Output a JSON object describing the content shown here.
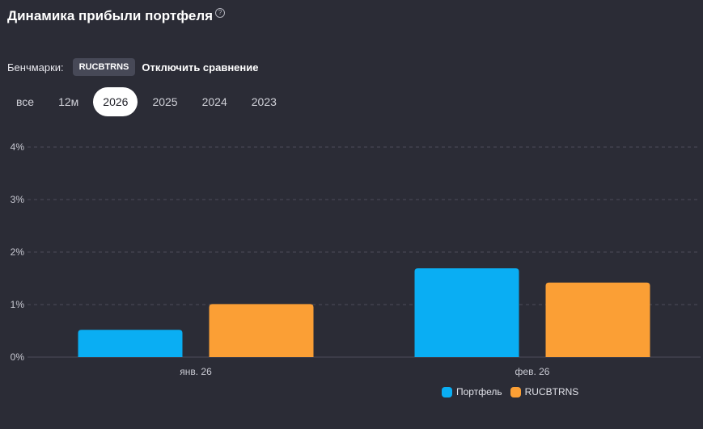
{
  "header": {
    "title": "Динамика прибыли портфеля",
    "help_glyph": "?"
  },
  "benchmarks": {
    "label": "Бенчмарки:",
    "selected": "RUCBTRNS",
    "disable_label": "Отключить сравнение"
  },
  "periods": [
    {
      "label": "все",
      "active": false
    },
    {
      "label": "12м",
      "active": false
    },
    {
      "label": "2026",
      "active": true
    },
    {
      "label": "2025",
      "active": false
    },
    {
      "label": "2024",
      "active": false
    },
    {
      "label": "2023",
      "active": false
    }
  ],
  "colors": {
    "background": "#2b2c36",
    "portfolio": "#0aaef3",
    "benchmark": "#fb9f35",
    "grid": "#4c4d59",
    "active_pill": "#ffffff"
  },
  "chart_data": {
    "type": "bar",
    "categories": [
      "янв. 26",
      "фев. 26"
    ],
    "series": [
      {
        "name": "Портфель",
        "values": [
          0.52,
          1.69
        ],
        "color": "#0aaef3"
      },
      {
        "name": "RUCBTRNS",
        "values": [
          1.01,
          1.42
        ],
        "color": "#fb9f35"
      }
    ],
    "ylim": [
      0,
      4
    ],
    "y_ticks": [
      "0%",
      "1%",
      "2%",
      "3%",
      "4%"
    ],
    "grid": true,
    "legend_position": "bottom-right"
  }
}
